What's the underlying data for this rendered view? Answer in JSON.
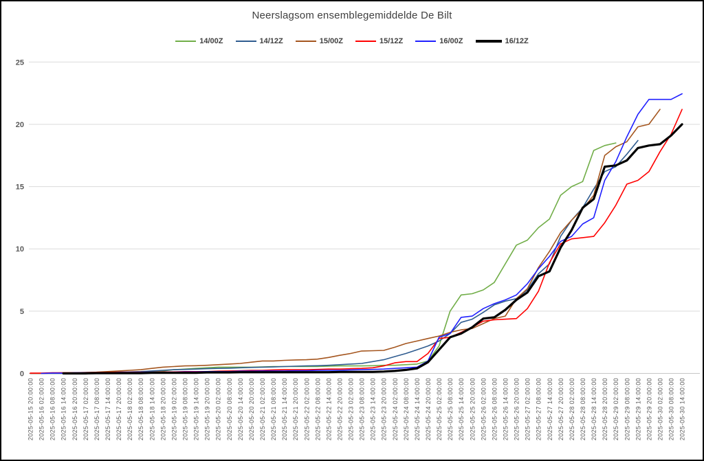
{
  "chart_data": {
    "type": "line",
    "title": "Neerslagsom ensemblegemiddelde De Bilt",
    "xlabel": "",
    "ylabel": "",
    "ylim": [
      0,
      25
    ],
    "y_ticks": [
      0,
      5,
      10,
      15,
      20,
      25
    ],
    "grid": "horizontal",
    "legend_position": "top",
    "grid_color": "#DADADA",
    "axis_color": "#C6C6C6",
    "x_tick_labels": [
      "2025-05-15 20:00:00",
      "2025-05-16 02:00:00",
      "2025-05-16 08:00:00",
      "2025-05-16 14:00:00",
      "2025-05-16 20:00:00",
      "2025-05-17 02:00:00",
      "2025-05-17 08:00:00",
      "2025-05-17 14:00:00",
      "2025-05-17 20:00:00",
      "2025-05-18 02:00:00",
      "2025-05-18 08:00:00",
      "2025-05-18 14:00:00",
      "2025-05-18 20:00:00",
      "2025-05-19 02:00:00",
      "2025-05-19 08:00:00",
      "2025-05-19 14:00:00",
      "2025-05-19 20:00:00",
      "2025-05-20 02:00:00",
      "2025-05-20 08:00:00",
      "2025-05-20 14:00:00",
      "2025-05-20 20:00:00",
      "2025-05-21 02:00:00",
      "2025-05-21 08:00:00",
      "2025-05-21 14:00:00",
      "2025-05-21 20:00:00",
      "2025-05-22 02:00:00",
      "2025-05-22 08:00:00",
      "2025-05-22 14:00:00",
      "2025-05-22 20:00:00",
      "2025-05-23 02:00:00",
      "2025-05-23 08:00:00",
      "2025-05-23 14:00:00",
      "2025-05-23 20:00:00",
      "2025-05-24 02:00:00",
      "2025-05-24 08:00:00",
      "2025-05-24 14:00:00",
      "2025-05-24 20:00:00",
      "2025-05-25 02:00:00",
      "2025-05-25 08:00:00",
      "2025-05-25 14:00:00",
      "2025-05-25 20:00:00",
      "2025-05-26 02:00:00",
      "2025-05-26 08:00:00",
      "2025-05-26 14:00:00",
      "2025-05-26 20:00:00",
      "2025-05-27 02:00:00",
      "2025-05-27 08:00:00",
      "2025-05-27 14:00:00",
      "2025-05-27 20:00:00",
      "2025-05-28 02:00:00",
      "2025-05-28 08:00:00",
      "2025-05-28 14:00:00",
      "2025-05-28 20:00:00",
      "2025-05-29 02:00:00",
      "2025-05-29 08:00:00",
      "2025-05-29 14:00:00",
      "2025-05-29 20:00:00",
      "2025-05-30 02:00:00",
      "2025-05-30 08:00:00",
      "2025-05-30 14:00:00"
    ],
    "series": [
      {
        "name": "14/00Z",
        "color": "#70AD47",
        "thick": false,
        "values": [
          0,
          0,
          0,
          0,
          0.02,
          0.05,
          0.05,
          0.08,
          0.1,
          0.1,
          0.12,
          0.15,
          0.2,
          0.3,
          0.35,
          0.4,
          0.45,
          0.5,
          0.5,
          0.5,
          0.5,
          0.52,
          0.55,
          0.55,
          0.55,
          0.55,
          0.55,
          0.58,
          0.6,
          0.6,
          0.6,
          0.62,
          0.65,
          0.65,
          0.7,
          0.75,
          1.0,
          2.2,
          5.0,
          6.3,
          6.4,
          6.7,
          7.3,
          8.8,
          10.3,
          10.7,
          11.7,
          12.4,
          14.3,
          15.0,
          15.4,
          17.9,
          18.3,
          18.5,
          null,
          null,
          null,
          null,
          null,
          null
        ]
      },
      {
        "name": "14/12Z",
        "color": "#2E5B8F",
        "thick": false,
        "values": [
          0,
          0,
          0,
          0,
          0.02,
          0.05,
          0.05,
          0.08,
          0.1,
          0.12,
          0.15,
          0.2,
          0.25,
          0.3,
          0.32,
          0.35,
          0.38,
          0.4,
          0.42,
          0.45,
          0.48,
          0.5,
          0.52,
          0.55,
          0.58,
          0.6,
          0.62,
          0.65,
          0.7,
          0.75,
          0.8,
          0.95,
          1.1,
          1.35,
          1.6,
          1.9,
          2.2,
          2.6,
          3.2,
          4.1,
          4.35,
          4.9,
          5.5,
          5.8,
          6.0,
          6.7,
          8.0,
          8.8,
          11.0,
          12.3,
          13.3,
          14.8,
          16.2,
          16.6,
          17.6,
          18.7,
          null,
          null,
          null,
          null
        ]
      },
      {
        "name": "15/00Z",
        "color": "#A4551E",
        "thick": false,
        "values": [
          0,
          0,
          0.02,
          0.05,
          0.05,
          0.08,
          0.1,
          0.15,
          0.2,
          0.25,
          0.3,
          0.4,
          0.5,
          0.55,
          0.6,
          0.62,
          0.65,
          0.7,
          0.75,
          0.8,
          0.9,
          1.0,
          1.0,
          1.05,
          1.08,
          1.1,
          1.15,
          1.28,
          1.45,
          1.6,
          1.8,
          1.82,
          1.85,
          2.1,
          2.4,
          2.6,
          2.8,
          3.0,
          3.3,
          3.5,
          3.6,
          4.0,
          4.4,
          4.6,
          6.0,
          6.8,
          8.5,
          9.8,
          11.3,
          12.3,
          13.2,
          14.3,
          17.5,
          18.2,
          18.6,
          19.8,
          20.0,
          21.2,
          null,
          null
        ]
      },
      {
        "name": "15/12Z",
        "color": "#FF0000",
        "thick": false,
        "values": [
          0.02,
          0.02,
          0.05,
          0.05,
          0.05,
          0.05,
          0.08,
          0.08,
          0.1,
          0.1,
          0.1,
          0.1,
          0.12,
          0.12,
          0.15,
          0.15,
          0.15,
          0.18,
          0.2,
          0.22,
          0.25,
          0.25,
          0.28,
          0.3,
          0.3,
          0.3,
          0.32,
          0.35,
          0.35,
          0.38,
          0.4,
          0.45,
          0.6,
          0.85,
          0.95,
          0.95,
          1.6,
          2.8,
          2.9,
          3.3,
          3.7,
          4.2,
          4.3,
          4.35,
          4.4,
          5.2,
          6.6,
          8.9,
          10.4,
          10.8,
          10.9,
          11.0,
          12.1,
          13.5,
          15.2,
          15.5,
          16.2,
          17.8,
          19.2,
          21.2
        ]
      },
      {
        "name": "16/00Z",
        "color": "#1F1FFF",
        "thick": false,
        "values": [
          null,
          0,
          0.02,
          0.02,
          0.05,
          0.05,
          0.05,
          0.05,
          0.08,
          0.08,
          0.08,
          0.1,
          0.1,
          0.1,
          0.12,
          0.12,
          0.15,
          0.15,
          0.15,
          0.18,
          0.18,
          0.2,
          0.2,
          0.2,
          0.22,
          0.22,
          0.25,
          0.25,
          0.25,
          0.28,
          0.3,
          0.32,
          0.35,
          0.4,
          0.45,
          0.5,
          1.0,
          2.9,
          3.2,
          4.5,
          4.6,
          5.2,
          5.6,
          5.9,
          6.3,
          7.2,
          8.4,
          9.4,
          10.6,
          11.0,
          12.0,
          12.5,
          15.5,
          17.0,
          19.0,
          20.8,
          22.0,
          22.0,
          22.0,
          22.45
        ]
      },
      {
        "name": "16/12Z",
        "color": "#000000",
        "thick": true,
        "values": [
          null,
          null,
          null,
          0,
          0,
          0,
          0.02,
          0.02,
          0.02,
          0.02,
          0.02,
          0.05,
          0.05,
          0.05,
          0.05,
          0.05,
          0.08,
          0.08,
          0.08,
          0.1,
          0.1,
          0.1,
          0.1,
          0.1,
          0.1,
          0.1,
          0.1,
          0.1,
          0.12,
          0.12,
          0.12,
          0.12,
          0.15,
          0.2,
          0.28,
          0.4,
          0.9,
          1.9,
          2.9,
          3.2,
          3.7,
          4.4,
          4.5,
          5.1,
          5.9,
          6.5,
          7.8,
          8.2,
          10.1,
          11.5,
          13.3,
          14.0,
          16.6,
          16.7,
          17.1,
          18.1,
          18.3,
          18.4,
          19.1,
          20.0
        ]
      }
    ]
  }
}
